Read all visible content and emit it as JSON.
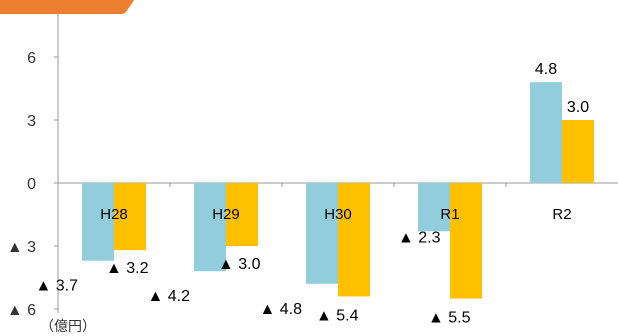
{
  "chart_data": {
    "type": "bar",
    "categories": [
      "H28",
      "H29",
      "H30",
      "R1",
      "R2"
    ],
    "series": [
      {
        "values": [
          -3.7,
          -4.2,
          -4.8,
          -2.3,
          4.8
        ],
        "color": "#92CDDC"
      },
      {
        "values": [
          -3.2,
          -3.0,
          -5.4,
          -5.5,
          3.0
        ],
        "color": "#FFC000"
      }
    ],
    "data_labels": [
      [
        "▲ 3.7",
        "▲ 4.2",
        "▲ 4.8",
        "▲ 2.3",
        "4.8"
      ],
      [
        "▲ 3.2",
        "▲ 3.0",
        "▲ 5.4",
        "▲ 5.5",
        "3.0"
      ]
    ],
    "y_ticks": [
      6,
      3,
      0,
      -3,
      -6
    ],
    "y_tick_labels": [
      "6",
      "3",
      "0",
      "▲ 3",
      "▲ 6"
    ],
    "ylim": [
      -6,
      6
    ],
    "y_unit": "（億円）",
    "title": "",
    "xlabel": "",
    "ylabel": "",
    "grid": false,
    "accent_color": "#ED7D31"
  }
}
